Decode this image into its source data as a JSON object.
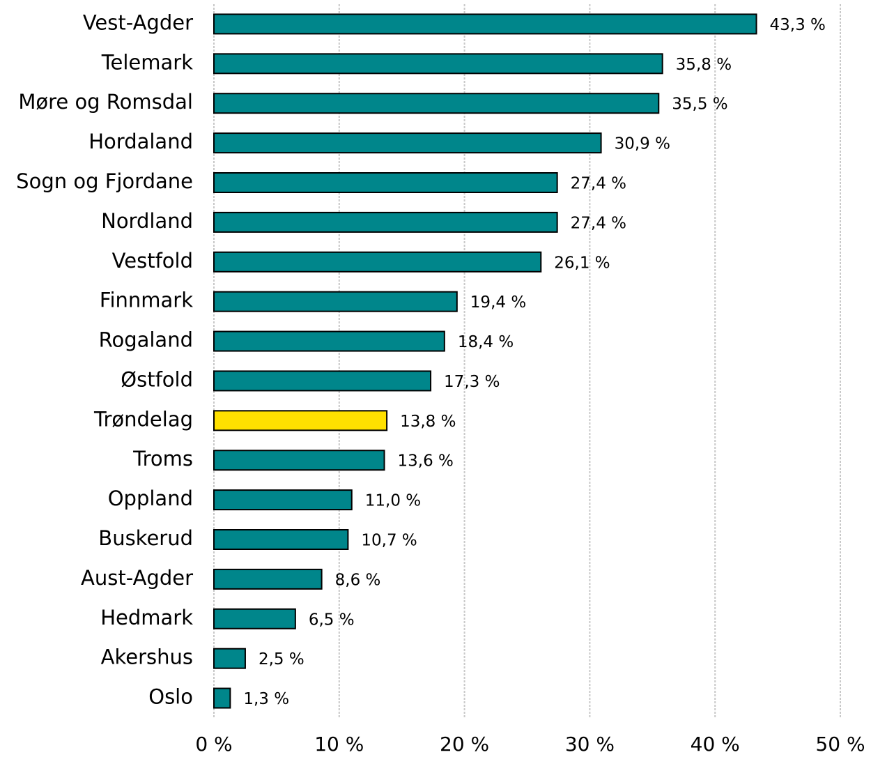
{
  "chart_data": {
    "type": "barh",
    "categories": [
      "Vest-Agder",
      "Telemark",
      "Møre og Romsdal",
      "Hordaland",
      "Sogn og Fjordane",
      "Nordland",
      "Vestfold",
      "Finnmark",
      "Rogaland",
      "Østfold",
      "Trøndelag",
      "Troms",
      "Oppland",
      "Buskerud",
      "Aust-Agder",
      "Hedmark",
      "Akershus",
      "Oslo"
    ],
    "values": [
      43.3,
      35.8,
      35.5,
      30.9,
      27.4,
      27.4,
      26.1,
      19.4,
      18.4,
      17.3,
      13.8,
      13.6,
      11.0,
      10.7,
      8.6,
      6.5,
      2.5,
      1.3
    ],
    "value_labels": [
      "43,3 %",
      "35,8 %",
      "35,5 %",
      "30,9 %",
      "27,4 %",
      "27,4 %",
      "26,1 %",
      "19,4 %",
      "18,4 %",
      "17,3 %",
      "13,8 %",
      "13,6 %",
      "11,0 %",
      "10,7 %",
      "8,6 %",
      "6,5 %",
      "2,5 %",
      "1,3 %"
    ],
    "colors": [
      "#00868b",
      "#00868b",
      "#00868b",
      "#00868b",
      "#00868b",
      "#00868b",
      "#00868b",
      "#00868b",
      "#00868b",
      "#00868b",
      "#ffe000",
      "#00868b",
      "#00868b",
      "#00868b",
      "#00868b",
      "#00868b",
      "#00868b",
      "#00868b"
    ],
    "xlim": [
      0,
      50
    ],
    "xticks": [
      {
        "value": 0,
        "label": "0 %"
      },
      {
        "value": 10,
        "label": "10 %"
      },
      {
        "value": 20,
        "label": "20 %"
      },
      {
        "value": 30,
        "label": "30 %"
      },
      {
        "value": 40,
        "label": "40 %"
      },
      {
        "value": 50,
        "label": "50 %"
      }
    ],
    "grid": true
  }
}
